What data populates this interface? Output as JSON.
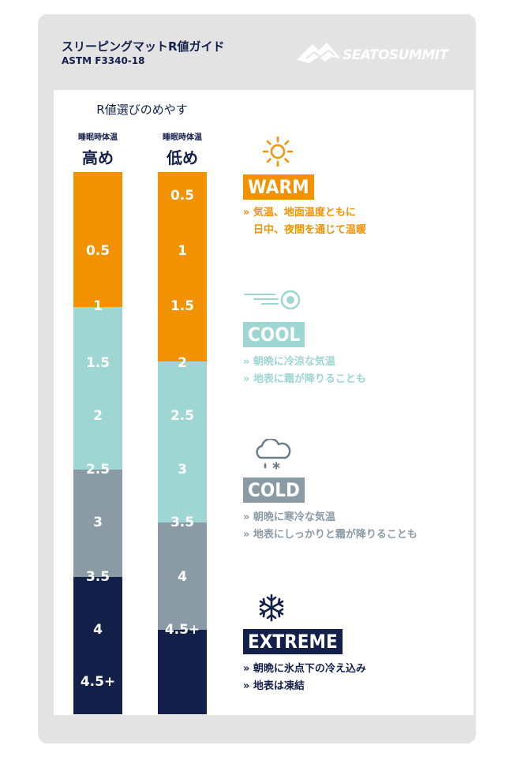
{
  "header": {
    "title": "スリーピングマットR値ガイド",
    "subtitle": "ASTM F3340-18",
    "brand": "SEATOSUMMIT"
  },
  "guide_label": "R値選びのめやす",
  "columns": [
    {
      "small": "睡眠時体温",
      "big": "高め",
      "ticks": [
        "0.5",
        "1",
        "1.5",
        "2",
        "2.5",
        "3",
        "3.5",
        "4",
        "4.5+"
      ]
    },
    {
      "small": "睡眠時体温",
      "big": "低め",
      "ticks": [
        "0.5",
        "1",
        "1.5",
        "2",
        "2.5",
        "3",
        "3.5",
        "4",
        "4.5+"
      ]
    }
  ],
  "categories": [
    {
      "id": "warm",
      "label": "WARM",
      "color": "#f39200",
      "icon": "sun-icon",
      "lines": [
        "» 気温、地面温度ともに",
        "日中、夜間を通じて温暖"
      ]
    },
    {
      "id": "cool",
      "label": "COOL",
      "color": "#9dd6d3",
      "icon": "wind-icon",
      "lines": [
        "» 朝晩に冷涼な気温",
        "» 地表に霜が降りることも"
      ]
    },
    {
      "id": "cold",
      "label": "COLD",
      "color": "#8a9ba5",
      "icon": "cloud-snow-icon",
      "lines": [
        "» 朝晩に寒冷な気温",
        "» 地表にしっかりと霜が降りることも"
      ]
    },
    {
      "id": "extreme",
      "label": "EXTREME",
      "color": "#13204a",
      "icon": "snowflake-icon",
      "lines": [
        "» 朝晩に氷点下の冷え込み",
        "» 地表は凍結"
      ]
    }
  ]
}
